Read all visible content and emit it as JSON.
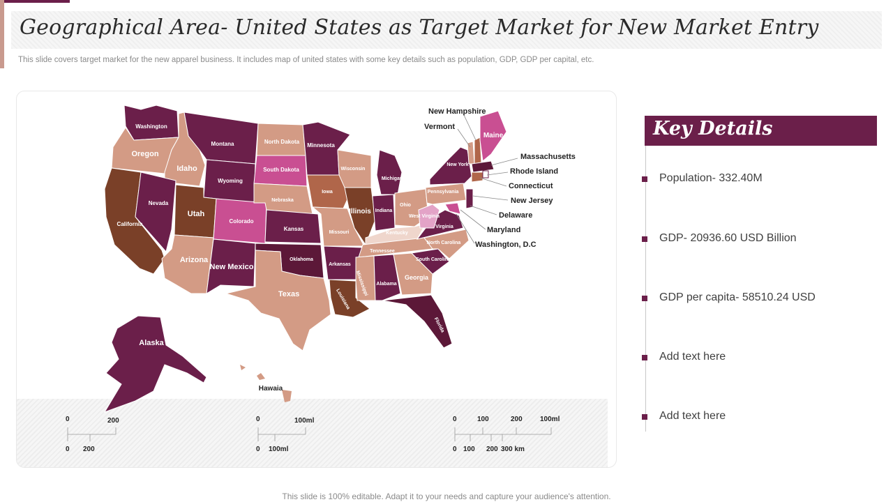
{
  "header": {
    "title": "Geographical Area- United States as Target Market for New Market Entry",
    "subtitle": "This slide covers target market for the new apparel business. It includes map of united states with some key details such as population, GDP, GDP per capital, etc."
  },
  "colors": {
    "plum": "#6b1f4a",
    "brown": "#7a4028",
    "tan": "#d39b85",
    "pink": "#c94f92",
    "orange": "#b0664a",
    "light_pink": "#e3a3c7",
    "light_tan": "#efd6cc"
  },
  "map": {
    "states": {
      "washington": "Washington",
      "oregon": "Oregon",
      "california": "California",
      "idaho": "Idaho",
      "nevada": "Nevada",
      "montana": "Montana",
      "wyoming": "Wyoming",
      "utah": "Utah",
      "arizona": "Arizona",
      "colorado": "Colorado",
      "new_mexico": "New Mexico",
      "north_dakota": "North Dakota",
      "south_dakota": "South Dakota",
      "nebraska": "Nebraska",
      "kansas": "Kansas",
      "oklahoma": "Oklahoma",
      "texas": "Texas",
      "minnesota": "Minnesota",
      "iowa": "Iowa",
      "missouri": "Missouri",
      "arkansas": "Arkansas",
      "louisiana": "Louisiana",
      "wisconsin": "Wisconsin",
      "illinois": "Illinois",
      "michigan": "Michigan",
      "indiana": "Indiana",
      "ohio": "Ohio",
      "kentucky": "Kentucky",
      "tennessee": "Tennessee",
      "mississippi": "Mississippi",
      "alabama": "Alabama",
      "georgia": "Georgia",
      "florida": "Florida",
      "south_carolina": "South Carolina",
      "north_carolina": "North Carolina",
      "virginia": "Virginia",
      "west_virginia": "West Virginia",
      "pennsylvania": "Pennsylvania",
      "new_york": "New York",
      "maine": "Maine",
      "alaska": "Alaska",
      "hawaii": "Hawaia"
    },
    "callouts": {
      "new_hampshire": "New Hampshire",
      "vermont": "Vermont",
      "massachusetts": "Massachusetts",
      "rhode_island": "Rhode Island",
      "connecticut": "Connecticut",
      "new_jersey": "New Jersey",
      "delaware": "Delaware",
      "maryland": "Maryland",
      "washington_dc": "Washington, D.C"
    },
    "scales": {
      "scale1_top": [
        "0",
        "200"
      ],
      "scale1_bottom": [
        "0",
        "200"
      ],
      "scale2_top": [
        "0",
        "100ml"
      ],
      "scale2_bottom": [
        "0",
        "100ml"
      ],
      "scale3_top": [
        "0",
        "100",
        "200",
        "100ml"
      ],
      "scale3_bottom": [
        "0",
        "100",
        "200",
        "300 km"
      ]
    }
  },
  "key_details": {
    "title": "Key Details",
    "items": [
      "Population- 332.40M",
      "GDP- 20936.60 USD Billion",
      "GDP per capita- 58510.24 USD",
      "Add text here",
      "Add text here"
    ]
  },
  "footer": "This slide is 100% editable. Adapt it to your needs and capture your audience's attention."
}
